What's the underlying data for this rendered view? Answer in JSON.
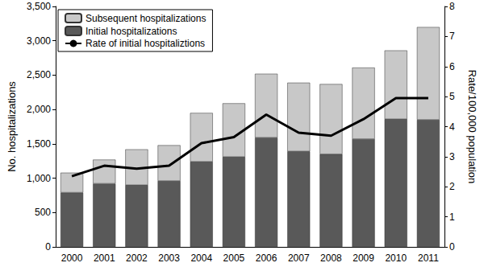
{
  "chart_data": {
    "type": "bar",
    "stacked": true,
    "grid": false,
    "legend": "upper left",
    "categories": [
      "2000",
      "2001",
      "2002",
      "2003",
      "2004",
      "2005",
      "2006",
      "2007",
      "2008",
      "2009",
      "2010",
      "2011"
    ],
    "y_label": "No. hospitalizations",
    "y2_label": "Rate/100,000 population",
    "ylim": [
      0,
      3500
    ],
    "yticks": [
      0,
      500,
      {
        "value": 1000,
        "label": "1,000"
      },
      {
        "value": 1500,
        "label": "1,500"
      },
      {
        "value": 2000,
        "label": "2,000"
      },
      {
        "value": 2500,
        "label": "2,500"
      },
      {
        "value": 3000,
        "label": "3,000"
      },
      {
        "value": 3500,
        "label": "3,500"
      }
    ],
    "y2lim": [
      0,
      8
    ],
    "y2ticks": [
      0,
      1,
      2,
      3,
      4,
      5,
      6,
      7,
      8
    ],
    "series": [
      {
        "name": "Subsequent hospitalizations",
        "type": "bar",
        "color": "#c8c8c8",
        "values": [
          290,
          350,
          520,
          520,
          710,
          780,
          930,
          1000,
          1020,
          1040,
          1000,
          1350
        ]
      },
      {
        "name": "Initial hospitalizations",
        "type": "bar",
        "color": "#595959",
        "values": [
          790,
          920,
          900,
          960,
          1240,
          1310,
          1590,
          1390,
          1350,
          1570,
          1860,
          1850
        ]
      },
      {
        "name": "Rate of initial hospitaliztions",
        "type": "line",
        "axis": "y2",
        "color": "#000000",
        "marker": "none",
        "line_style": "solid",
        "values": [
          2.35,
          2.7,
          2.6,
          2.7,
          3.45,
          3.65,
          4.4,
          3.8,
          3.7,
          4.25,
          4.95,
          4.95
        ]
      }
    ]
  }
}
